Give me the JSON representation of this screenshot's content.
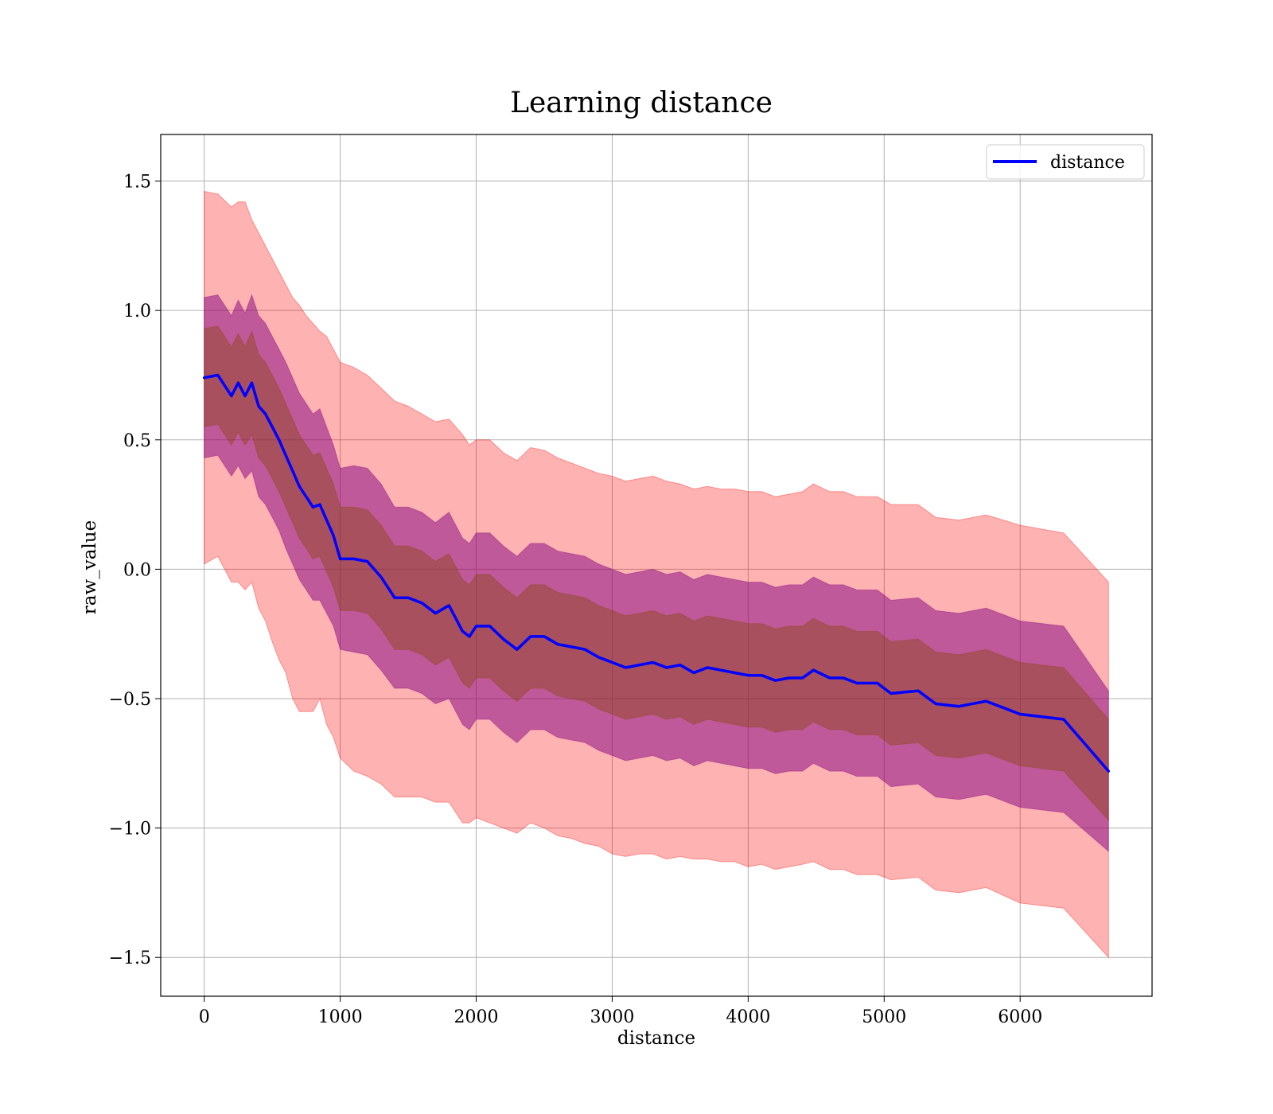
{
  "chart_data": {
    "type": "area",
    "title": "Learning distance",
    "xlabel": "distance",
    "ylabel": "raw_value",
    "xlim": [
      -320,
      6970
    ],
    "ylim": [
      -1.65,
      1.68
    ],
    "xticks": [
      0,
      1000,
      2000,
      3000,
      4000,
      5000,
      6000
    ],
    "xtick_labels": [
      "0",
      "1000",
      "2000",
      "3000",
      "4000",
      "5000",
      "6000"
    ],
    "yticks": [
      -1.5,
      -1.0,
      -0.5,
      0.0,
      0.5,
      1.0,
      1.5
    ],
    "ytick_labels": [
      "−1.5",
      "−1.0",
      "−0.5",
      "0.0",
      "0.5",
      "1.0",
      "1.5"
    ],
    "grid": true,
    "legend": {
      "position": "upper-right",
      "entries": [
        "distance"
      ]
    },
    "colors": {
      "line": "#0000ff",
      "band_outer": "#ff0000",
      "band_middle": "#800080",
      "band_inner": "#8b4513"
    },
    "x": [
      0,
      100,
      200,
      250,
      300,
      350,
      400,
      450,
      500,
      550,
      600,
      650,
      700,
      750,
      800,
      850,
      900,
      950,
      1000,
      1100,
      1200,
      1300,
      1400,
      1500,
      1600,
      1700,
      1800,
      1900,
      1950,
      2000,
      2100,
      2200,
      2300,
      2400,
      2500,
      2600,
      2700,
      2800,
      2900,
      3000,
      3100,
      3200,
      3300,
      3400,
      3500,
      3600,
      3700,
      3800,
      3900,
      4000,
      4100,
      4200,
      4300,
      4400,
      4480,
      4600,
      4700,
      4800,
      4950,
      5050,
      5250,
      5380,
      5550,
      5750,
      6000,
      6320,
      6650
    ],
    "series": [
      {
        "name": "distance",
        "values": [
          0.74,
          0.75,
          0.67,
          0.72,
          0.67,
          0.72,
          0.63,
          0.6,
          0.55,
          0.5,
          0.44,
          0.38,
          0.32,
          0.28,
          0.24,
          0.25,
          0.19,
          0.13,
          0.04,
          0.04,
          0.03,
          -0.03,
          -0.11,
          -0.11,
          -0.13,
          -0.17,
          -0.14,
          -0.24,
          -0.26,
          -0.22,
          -0.22,
          -0.27,
          -0.31,
          -0.26,
          -0.26,
          -0.29,
          -0.3,
          -0.31,
          -0.34,
          -0.36,
          -0.38,
          -0.37,
          -0.36,
          -0.38,
          -0.37,
          -0.4,
          -0.38,
          -0.39,
          -0.4,
          -0.41,
          -0.41,
          -0.43,
          -0.42,
          -0.42,
          -0.39,
          -0.42,
          -0.42,
          -0.44,
          -0.44,
          -0.48,
          -0.47,
          -0.52,
          -0.53,
          -0.51,
          -0.56,
          -0.58,
          -0.78
        ]
      }
    ],
    "bands": [
      {
        "band": "outer",
        "lower": [
          0.02,
          0.05,
          -0.05,
          -0.05,
          -0.08,
          -0.05,
          -0.15,
          -0.2,
          -0.28,
          -0.35,
          -0.4,
          -0.5,
          -0.55,
          -0.55,
          -0.55,
          -0.5,
          -0.6,
          -0.65,
          -0.73,
          -0.78,
          -0.8,
          -0.83,
          -0.88,
          -0.88,
          -0.88,
          -0.9,
          -0.9,
          -0.98,
          -0.98,
          -0.96,
          -0.98,
          -1.0,
          -1.02,
          -0.98,
          -1.0,
          -1.03,
          -1.04,
          -1.06,
          -1.07,
          -1.1,
          -1.11,
          -1.1,
          -1.1,
          -1.12,
          -1.11,
          -1.12,
          -1.12,
          -1.13,
          -1.13,
          -1.15,
          -1.14,
          -1.16,
          -1.15,
          -1.14,
          -1.13,
          -1.16,
          -1.16,
          -1.18,
          -1.18,
          -1.2,
          -1.19,
          -1.24,
          -1.25,
          -1.23,
          -1.29,
          -1.31,
          -1.5
        ]
      },
      {
        "band": "outer",
        "upper": [
          1.46,
          1.45,
          1.4,
          1.42,
          1.42,
          1.35,
          1.3,
          1.25,
          1.2,
          1.15,
          1.1,
          1.05,
          1.02,
          0.98,
          0.95,
          0.92,
          0.9,
          0.85,
          0.8,
          0.78,
          0.75,
          0.7,
          0.65,
          0.63,
          0.6,
          0.57,
          0.58,
          0.52,
          0.48,
          0.5,
          0.5,
          0.45,
          0.42,
          0.47,
          0.46,
          0.43,
          0.41,
          0.39,
          0.37,
          0.36,
          0.34,
          0.35,
          0.36,
          0.34,
          0.33,
          0.31,
          0.32,
          0.31,
          0.31,
          0.3,
          0.3,
          0.28,
          0.29,
          0.3,
          0.33,
          0.3,
          0.3,
          0.28,
          0.28,
          0.25,
          0.25,
          0.2,
          0.19,
          0.21,
          0.17,
          0.14,
          -0.05
        ]
      },
      {
        "band": "middle",
        "lower": [
          0.43,
          0.44,
          0.36,
          0.4,
          0.35,
          0.38,
          0.28,
          0.25,
          0.2,
          0.15,
          0.08,
          0.02,
          -0.04,
          -0.08,
          -0.12,
          -0.12,
          -0.17,
          -0.22,
          -0.31,
          -0.32,
          -0.33,
          -0.39,
          -0.46,
          -0.46,
          -0.48,
          -0.52,
          -0.5,
          -0.6,
          -0.62,
          -0.58,
          -0.58,
          -0.63,
          -0.67,
          -0.62,
          -0.62,
          -0.65,
          -0.66,
          -0.67,
          -0.7,
          -0.72,
          -0.74,
          -0.73,
          -0.72,
          -0.74,
          -0.73,
          -0.76,
          -0.74,
          -0.75,
          -0.76,
          -0.77,
          -0.77,
          -0.79,
          -0.78,
          -0.78,
          -0.75,
          -0.78,
          -0.78,
          -0.8,
          -0.8,
          -0.84,
          -0.83,
          -0.88,
          -0.89,
          -0.87,
          -0.92,
          -0.94,
          -1.09
        ]
      },
      {
        "band": "middle",
        "upper": [
          1.05,
          1.06,
          0.98,
          1.04,
          0.99,
          1.06,
          0.98,
          0.95,
          0.9,
          0.85,
          0.8,
          0.74,
          0.68,
          0.64,
          0.6,
          0.62,
          0.55,
          0.48,
          0.39,
          0.4,
          0.39,
          0.33,
          0.24,
          0.24,
          0.22,
          0.18,
          0.22,
          0.12,
          0.1,
          0.14,
          0.14,
          0.09,
          0.05,
          0.1,
          0.1,
          0.07,
          0.06,
          0.05,
          0.02,
          0.0,
          -0.02,
          -0.01,
          0.0,
          -0.02,
          -0.01,
          -0.04,
          -0.02,
          -0.03,
          -0.04,
          -0.05,
          -0.05,
          -0.07,
          -0.06,
          -0.06,
          -0.03,
          -0.06,
          -0.06,
          -0.08,
          -0.08,
          -0.12,
          -0.11,
          -0.16,
          -0.17,
          -0.15,
          -0.2,
          -0.22,
          -0.47
        ]
      },
      {
        "band": "inner",
        "lower": [
          0.55,
          0.56,
          0.48,
          0.53,
          0.48,
          0.52,
          0.43,
          0.4,
          0.35,
          0.3,
          0.24,
          0.18,
          0.12,
          0.08,
          0.04,
          0.05,
          -0.01,
          -0.07,
          -0.16,
          -0.16,
          -0.17,
          -0.23,
          -0.31,
          -0.31,
          -0.33,
          -0.37,
          -0.34,
          -0.44,
          -0.46,
          -0.42,
          -0.42,
          -0.47,
          -0.51,
          -0.46,
          -0.46,
          -0.49,
          -0.5,
          -0.51,
          -0.54,
          -0.56,
          -0.58,
          -0.57,
          -0.56,
          -0.58,
          -0.57,
          -0.6,
          -0.58,
          -0.59,
          -0.6,
          -0.61,
          -0.61,
          -0.63,
          -0.62,
          -0.62,
          -0.59,
          -0.62,
          -0.62,
          -0.64,
          -0.64,
          -0.68,
          -0.67,
          -0.72,
          -0.73,
          -0.71,
          -0.76,
          -0.78,
          -0.97
        ]
      },
      {
        "band": "inner",
        "upper": [
          0.93,
          0.94,
          0.86,
          0.91,
          0.86,
          0.92,
          0.83,
          0.8,
          0.75,
          0.7,
          0.64,
          0.58,
          0.52,
          0.48,
          0.44,
          0.45,
          0.39,
          0.33,
          0.24,
          0.24,
          0.23,
          0.17,
          0.09,
          0.09,
          0.07,
          0.03,
          0.06,
          -0.04,
          -0.06,
          -0.02,
          -0.02,
          -0.07,
          -0.11,
          -0.06,
          -0.06,
          -0.09,
          -0.1,
          -0.11,
          -0.14,
          -0.16,
          -0.18,
          -0.17,
          -0.16,
          -0.18,
          -0.17,
          -0.2,
          -0.18,
          -0.19,
          -0.2,
          -0.21,
          -0.21,
          -0.23,
          -0.22,
          -0.22,
          -0.19,
          -0.22,
          -0.22,
          -0.24,
          -0.24,
          -0.28,
          -0.27,
          -0.32,
          -0.33,
          -0.31,
          -0.36,
          -0.38,
          -0.58
        ]
      }
    ]
  }
}
